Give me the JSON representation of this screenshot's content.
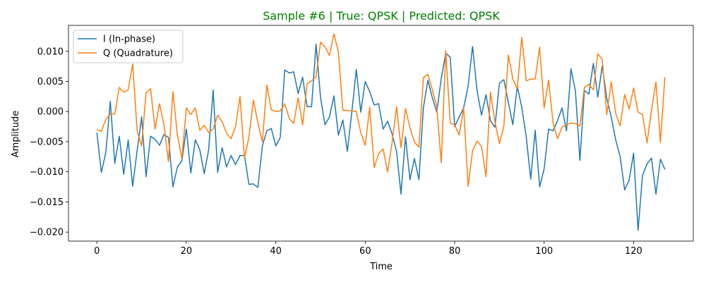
{
  "chart_data": {
    "type": "line",
    "title": "Sample #6 | True: QPSK | Predicted: QPSK",
    "title_color": "#008000",
    "xlabel": "Time",
    "ylabel": "Amplitude",
    "xlim": [
      -6.35,
      133.35
    ],
    "ylim": [
      -0.0215,
      0.0143
    ],
    "xticks": [
      0,
      20,
      40,
      60,
      80,
      100,
      120
    ],
    "xtick_labels": [
      "0",
      "20",
      "40",
      "60",
      "80",
      "100",
      "120"
    ],
    "yticks": [
      -0.02,
      -0.015,
      -0.01,
      -0.005,
      0.0,
      0.005,
      0.01
    ],
    "ytick_labels": [
      "−0.020",
      "−0.015",
      "−0.010",
      "−0.005",
      "0.000",
      "0.005",
      "0.010"
    ],
    "grid": false,
    "legend_position": "top-left",
    "series": [
      {
        "name": "I (In-phase)",
        "color": "#1f77b4",
        "values": [
          -0.0035,
          -0.0101,
          -0.0068,
          0.0017,
          -0.0086,
          -0.0041,
          -0.0104,
          -0.0047,
          -0.0124,
          -0.0065,
          -0.0009,
          -0.0108,
          -0.0041,
          -0.0046,
          -0.0056,
          -0.0038,
          -0.0043,
          -0.0125,
          -0.0092,
          -0.0082,
          -0.0029,
          -0.0102,
          -0.0047,
          -0.0063,
          -0.0103,
          -0.0063,
          0.0036,
          -0.0101,
          -0.006,
          -0.0092,
          -0.0073,
          -0.0088,
          -0.0073,
          -0.0073,
          -0.0121,
          -0.012,
          -0.0126,
          -0.0057,
          -0.0032,
          -0.0028,
          -0.0057,
          -0.0043,
          0.0069,
          0.0064,
          0.0066,
          0.003,
          0.0057,
          0.0008,
          0.0008,
          0.0112,
          0.0024,
          -0.0022,
          -0.0009,
          0.0026,
          -0.0039,
          -0.0014,
          -0.0066,
          -0.0001,
          0.007,
          -0.0001,
          0.005,
          0.0033,
          0.0011,
          0.0013,
          -0.0029,
          -0.0016,
          -0.0037,
          -0.0066,
          -0.0137,
          -0.0042,
          -0.0113,
          -0.0078,
          -0.0113,
          0.0006,
          0.0052,
          0.0023,
          -0.0001,
          0.0055,
          0.0097,
          0.009,
          -0.0025,
          -0.0009,
          0.0006,
          0.0042,
          0.0108,
          0.0035,
          -0.0006,
          0.0028,
          -0.0015,
          -0.0026,
          0.0047,
          0.0053,
          0.0015,
          -0.0022,
          0.0042,
          0.0007,
          -0.0042,
          -0.0112,
          -0.0031,
          -0.0125,
          -0.0095,
          -0.0029,
          -0.0032,
          -0.0015,
          0.0006,
          -0.0032,
          0.0071,
          0.0034,
          -0.0081,
          0.0035,
          0.0029,
          0.008,
          0.0024,
          0.0076,
          0.0022,
          -0.0009,
          -0.0047,
          -0.0075,
          -0.013,
          -0.0114,
          -0.0069,
          -0.0197,
          -0.0106,
          -0.0087,
          -0.0077,
          -0.0137,
          -0.0079,
          -0.0096
        ]
      },
      {
        "name": "Q (Quadrature)",
        "color": "#ff7f0e",
        "values": [
          -0.003,
          -0.0033,
          -0.0013,
          -0.0004,
          -0.0004,
          0.004,
          0.0032,
          0.0036,
          0.0079,
          -0.0032,
          -0.0057,
          0.0031,
          0.0038,
          -0.0029,
          0.0013,
          -0.0022,
          -0.0083,
          0.0033,
          -0.0039,
          -0.0078,
          0.0006,
          -0.0005,
          0.0006,
          -0.0031,
          -0.0023,
          -0.0035,
          -0.0029,
          -0.0006,
          -0.0017,
          -0.0036,
          -0.0045,
          -0.0025,
          0.0025,
          -0.0077,
          -0.0042,
          0.0019,
          -0.0019,
          -0.005,
          0.0044,
          0.0003,
          0.0,
          0.0001,
          0.0013,
          -0.0011,
          -0.002,
          0.0023,
          -0.0022,
          0.0046,
          0.0051,
          0.0058,
          0.0115,
          0.0107,
          0.0093,
          0.0129,
          0.0099,
          0.0002,
          0.0002,
          0.0001,
          0.0,
          -0.0035,
          -0.0056,
          0.0007,
          -0.0093,
          -0.007,
          -0.0062,
          -0.01,
          -0.0052,
          0.0008,
          -0.006,
          0.0005,
          -0.0027,
          -0.0051,
          -0.0059,
          0.0056,
          0.0062,
          0.0036,
          0.0008,
          -0.0085,
          0.0101,
          -0.0019,
          -0.0022,
          -0.0039,
          0.0006,
          -0.0124,
          -0.0065,
          -0.0049,
          -0.0058,
          -0.0108,
          0.0032,
          -0.0017,
          -0.0053,
          -0.0024,
          0.0094,
          0.0054,
          0.0038,
          0.0123,
          0.0051,
          0.0054,
          0.0054,
          0.0107,
          0.0006,
          0.0052,
          -0.0019,
          -0.0045,
          -0.0026,
          -0.0022,
          -0.0019,
          -0.002,
          -0.0024,
          0.004,
          0.0045,
          0.0036,
          0.0096,
          0.0086,
          -0.0005,
          0.0049,
          -0.0003,
          -0.0024,
          0.0028,
          0.0004,
          0.0039,
          -0.0001,
          -0.0005,
          -0.0052,
          0.0002,
          0.0049,
          -0.0051,
          0.0057
        ]
      }
    ]
  }
}
